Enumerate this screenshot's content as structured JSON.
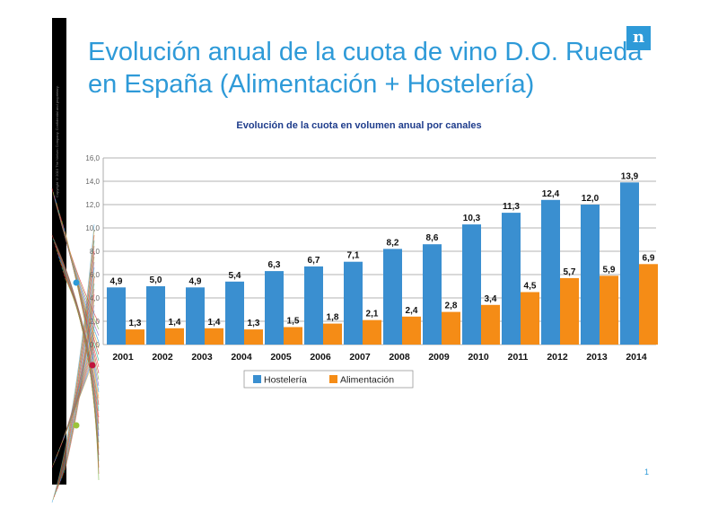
{
  "slide": {
    "title_line1": "Evolución anual de la cuota de vino D.O. Rueda",
    "title_line2": "en España (Alimentación + Hostelería)",
    "logo_text": "n",
    "copyright": "Copyright ©2015 The Nielsen Company. Confidential and proprietary.",
    "page_number": "1",
    "accent_color": "#2e9ad8"
  },
  "chart_data": {
    "type": "bar",
    "title": "Evolución de la cuota en volumen anual por canales",
    "categories": [
      "2001",
      "2002",
      "2003",
      "2004",
      "2005",
      "2006",
      "2007",
      "2008",
      "2009",
      "2010",
      "2011",
      "2012",
      "2013",
      "2014"
    ],
    "series": [
      {
        "name": "Hostelería",
        "color": "#3a8fd0",
        "values": [
          4.9,
          5.0,
          4.9,
          5.4,
          6.3,
          6.7,
          7.1,
          8.2,
          8.6,
          10.3,
          11.3,
          12.4,
          12.0,
          13.9
        ],
        "labels": [
          "4,9",
          "5,0",
          "4,9",
          "5,4",
          "6,3",
          "6,7",
          "7,1",
          "8,2",
          "8,6",
          "10,3",
          "11,3",
          "12,4",
          "12,0",
          "13,9"
        ]
      },
      {
        "name": "Alimentación",
        "color": "#f58c16",
        "values": [
          1.3,
          1.4,
          1.4,
          1.3,
          1.5,
          1.8,
          2.1,
          2.4,
          2.8,
          3.4,
          4.5,
          5.7,
          5.9,
          6.9
        ],
        "labels": [
          "1,3",
          "1,4",
          "1,4",
          "1,3",
          "1,5",
          "1,8",
          "2,1",
          "2,4",
          "2,8",
          "3,4",
          "4,5",
          "5,7",
          "5,9",
          "6,9"
        ]
      }
    ],
    "yticks": [
      "0,0",
      "2,0",
      "4,0",
      "6,0",
      "8,0",
      "10,0",
      "12,0",
      "14,0",
      "16,0"
    ],
    "ylim": [
      0,
      16
    ],
    "grid": true,
    "legend": "bottom-center"
  }
}
